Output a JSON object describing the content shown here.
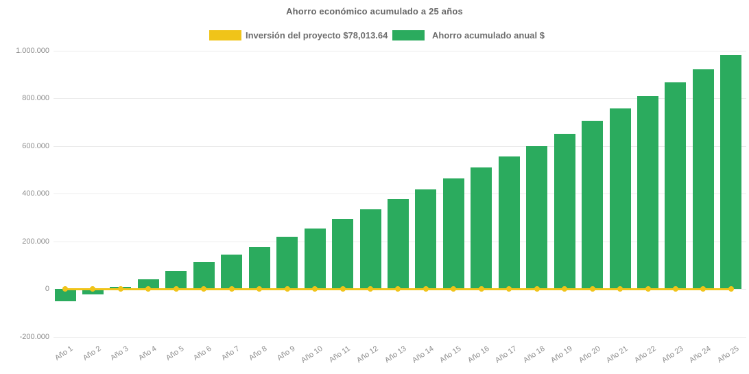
{
  "title": "Ahorro económico acumulado a 25 años",
  "legend": {
    "investment": {
      "label": "Inversión del proyecto $78,013.64",
      "color": "#F0C419"
    },
    "savings": {
      "label": "Ahorro acumulado anual $",
      "color": "#2BAB5E"
    }
  },
  "colors": {
    "bar_green": "#2BAB5E",
    "line_yellow": "#F0C419",
    "axis_label_gray": "#8c8c8c",
    "title_gray": "#666666",
    "gridline_gray": "#ebebeb",
    "background": "#ffffff"
  },
  "chart_data": {
    "type": "bar",
    "title": "Ahorro económico acumulado a 25 años",
    "xlabel": "",
    "ylabel": "",
    "ylim": [
      -200000,
      1000000
    ],
    "grid": true,
    "legend_position": "top",
    "categories": [
      "Año 1",
      "Año 2",
      "Año 3",
      "Año 4",
      "Año 5",
      "Año 6",
      "Año 7",
      "Año 8",
      "Año 9",
      "Año 10",
      "Año 11",
      "Año 12",
      "Año 13",
      "Año 14",
      "Año 15",
      "Año 16",
      "Año 17",
      "Año 18",
      "Año 19",
      "Año 20",
      "Año 21",
      "Año 22",
      "Año 23",
      "Año 24",
      "Año 25"
    ],
    "y_ticks": [
      {
        "value": -200000,
        "label": "-200.000"
      },
      {
        "value": 0,
        "label": "0"
      },
      {
        "value": 200000,
        "label": "200.000"
      },
      {
        "value": 400000,
        "label": "400.000"
      },
      {
        "value": 600000,
        "label": "600.000"
      },
      {
        "value": 800000,
        "label": "800.000"
      },
      {
        "value": 1000000,
        "label": "1.000.000"
      }
    ],
    "series": [
      {
        "name": "Ahorro acumulado anual $",
        "type": "bar",
        "color": "#2BAB5E",
        "values": [
          -53000,
          -24000,
          10000,
          39000,
          74000,
          112000,
          145000,
          177000,
          218000,
          252000,
          294000,
          333000,
          376000,
          417000,
          463000,
          509000,
          555000,
          600000,
          650000,
          704000,
          757000,
          810000,
          865000,
          922000,
          982000
        ]
      },
      {
        "name": "Inversión del proyecto $78,013.64",
        "type": "line",
        "color": "#F0C419",
        "marker": "circle",
        "values": [
          0,
          0,
          0,
          0,
          0,
          0,
          0,
          0,
          0,
          0,
          0,
          0,
          0,
          0,
          0,
          0,
          0,
          0,
          0,
          0,
          0,
          0,
          0,
          0,
          0
        ],
        "note": "flat line with round markers drawn along the zero baseline"
      }
    ]
  }
}
